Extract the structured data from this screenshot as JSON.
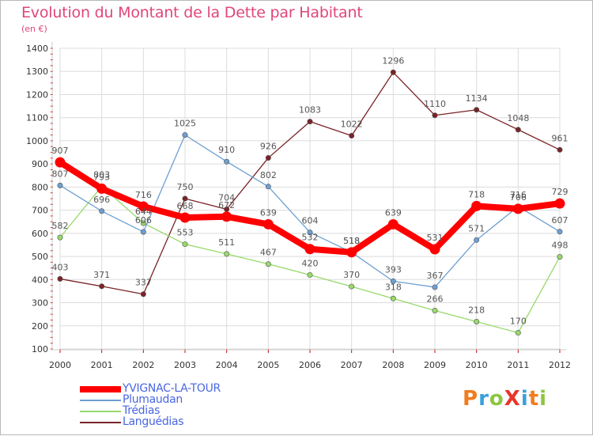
{
  "title": "Evolution du Montant de la Dette par Habitant",
  "subtitle": "(en €)",
  "brand": {
    "text": "ProXiti",
    "letters": [
      {
        "ch": "P",
        "color": "#f07d1e"
      },
      {
        "ch": "r",
        "color": "#3ba0db"
      },
      {
        "ch": "o",
        "color": "#8cc63f"
      },
      {
        "ch": "X",
        "color": "#e8362b"
      },
      {
        "ch": "i",
        "color": "#3ba0db"
      },
      {
        "ch": "t",
        "color": "#f07d1e"
      },
      {
        "ch": "i",
        "color": "#8cc63f"
      }
    ]
  },
  "chart_data": {
    "type": "line",
    "title": "Evolution du Montant de la Dette par Habitant",
    "subtitle": "(en €)",
    "x": [
      2000,
      2001,
      2002,
      2003,
      2004,
      2005,
      2006,
      2007,
      2008,
      2009,
      2010,
      2011,
      2012
    ],
    "ylim": [
      100,
      1400
    ],
    "yticks": [
      100,
      200,
      300,
      400,
      500,
      600,
      700,
      800,
      900,
      1000,
      1100,
      1200,
      1300,
      1400
    ],
    "grid": true,
    "legend": "bottom-left",
    "series": [
      {
        "name": "YVIGNAC-LA-TOUR",
        "color": "#ff0000",
        "values": [
          907,
          793,
          716,
          668,
          672,
          639,
          532,
          518,
          639,
          531,
          718,
          706,
          729
        ]
      },
      {
        "name": "Plumaudan",
        "color": "#6d9fd1",
        "values": [
          807,
          696,
          606,
          1025,
          910,
          802,
          604,
          518,
          393,
          367,
          571,
          716,
          607
        ]
      },
      {
        "name": "Trédias",
        "color": "#97d96b",
        "values": [
          582,
          803,
          644,
          553,
          511,
          467,
          420,
          370,
          318,
          266,
          218,
          170,
          498
        ]
      },
      {
        "name": "Languédias",
        "color": "#7a2327",
        "values": [
          403,
          371,
          337,
          750,
          704,
          926,
          1083,
          1022,
          1296,
          1110,
          1134,
          1048,
          961
        ]
      }
    ]
  }
}
